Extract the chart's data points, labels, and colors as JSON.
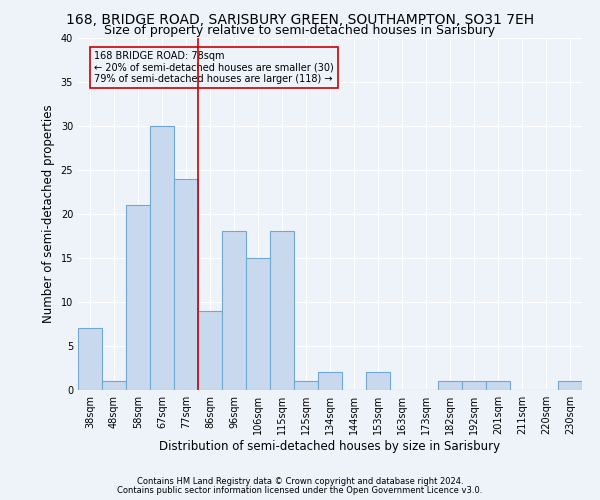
{
  "title": "168, BRIDGE ROAD, SARISBURY GREEN, SOUTHAMPTON, SO31 7EH",
  "subtitle": "Size of property relative to semi-detached houses in Sarisbury",
  "xlabel": "Distribution of semi-detached houses by size in Sarisbury",
  "ylabel": "Number of semi-detached properties",
  "footnote1": "Contains HM Land Registry data © Crown copyright and database right 2024.",
  "footnote2": "Contains public sector information licensed under the Open Government Licence v3.0.",
  "categories": [
    "38sqm",
    "48sqm",
    "58sqm",
    "67sqm",
    "77sqm",
    "86sqm",
    "96sqm",
    "106sqm",
    "115sqm",
    "125sqm",
    "134sqm",
    "144sqm",
    "153sqm",
    "163sqm",
    "173sqm",
    "182sqm",
    "192sqm",
    "201sqm",
    "211sqm",
    "220sqm",
    "230sqm"
  ],
  "values": [
    7,
    1,
    21,
    30,
    24,
    9,
    18,
    15,
    18,
    1,
    2,
    0,
    2,
    0,
    0,
    1,
    1,
    1,
    0,
    0,
    1
  ],
  "bar_color": "#c9d9ed",
  "bar_edge_color": "#6fa8d6",
  "marker_bin_index": 4,
  "marker_label": "168 BRIDGE ROAD: 78sqm",
  "smaller_pct": 20,
  "smaller_count": 30,
  "larger_pct": 79,
  "larger_count": 118,
  "ylim": [
    0,
    40
  ],
  "yticks": [
    0,
    5,
    10,
    15,
    20,
    25,
    30,
    35,
    40
  ],
  "bg_color": "#eef3f9",
  "grid_color": "#ffffff",
  "marker_line_color": "#cc0000",
  "box_edge_color": "#cc0000",
  "title_fontsize": 10,
  "subtitle_fontsize": 9,
  "axis_label_fontsize": 8.5,
  "tick_fontsize": 7,
  "footnote_fontsize": 6
}
